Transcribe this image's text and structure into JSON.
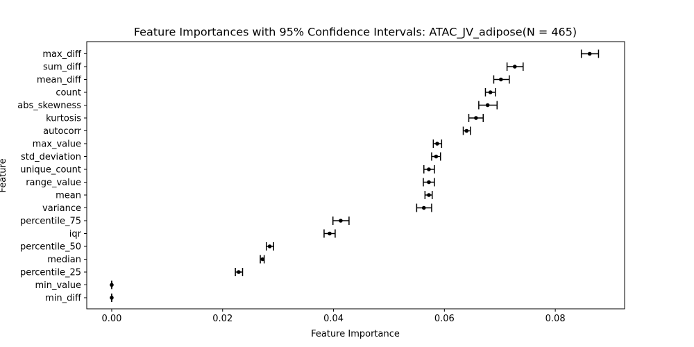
{
  "chart_data": {
    "type": "scatter",
    "title": "Feature Importances with 95% Confidence Intervals: ATAC_JV_adipose(N = 465)",
    "xlabel": "Feature Importance",
    "ylabel": "Feature",
    "xlim": [
      -0.0045,
      0.0925
    ],
    "x_ticks": [
      0.0,
      0.02,
      0.04,
      0.06,
      0.08
    ],
    "x_tick_labels": [
      "0.00",
      "0.02",
      "0.04",
      "0.06",
      "0.08"
    ],
    "grid": false,
    "legend": "none",
    "features": [
      {
        "name": "max_diff",
        "value": 0.0862,
        "lower": 0.0847,
        "upper": 0.0878
      },
      {
        "name": "sum_diff",
        "value": 0.0727,
        "lower": 0.0713,
        "upper": 0.0742
      },
      {
        "name": "mean_diff",
        "value": 0.0702,
        "lower": 0.0689,
        "upper": 0.0717
      },
      {
        "name": "count",
        "value": 0.0683,
        "lower": 0.0674,
        "upper": 0.0692
      },
      {
        "name": "abs_skewness",
        "value": 0.0678,
        "lower": 0.0662,
        "upper": 0.0695
      },
      {
        "name": "kurtosis",
        "value": 0.0657,
        "lower": 0.0644,
        "upper": 0.067
      },
      {
        "name": "autocorr",
        "value": 0.064,
        "lower": 0.0634,
        "upper": 0.0647
      },
      {
        "name": "max_value",
        "value": 0.0587,
        "lower": 0.058,
        "upper": 0.0595
      },
      {
        "name": "std_deviation",
        "value": 0.0585,
        "lower": 0.0577,
        "upper": 0.0593
      },
      {
        "name": "unique_count",
        "value": 0.0572,
        "lower": 0.0563,
        "upper": 0.0582
      },
      {
        "name": "range_value",
        "value": 0.0572,
        "lower": 0.0562,
        "upper": 0.0582
      },
      {
        "name": "mean",
        "value": 0.0572,
        "lower": 0.0565,
        "upper": 0.0578
      },
      {
        "name": "variance",
        "value": 0.0563,
        "lower": 0.055,
        "upper": 0.0577
      },
      {
        "name": "percentile_75",
        "value": 0.0413,
        "lower": 0.0399,
        "upper": 0.0428
      },
      {
        "name": "iqr",
        "value": 0.0393,
        "lower": 0.0383,
        "upper": 0.0403
      },
      {
        "name": "percentile_50",
        "value": 0.0285,
        "lower": 0.0279,
        "upper": 0.0292
      },
      {
        "name": "median",
        "value": 0.0272,
        "lower": 0.0268,
        "upper": 0.0275
      },
      {
        "name": "percentile_25",
        "value": 0.0229,
        "lower": 0.0223,
        "upper": 0.0236
      },
      {
        "name": "min_value",
        "value": 0.0,
        "lower": 0.0,
        "upper": 0.0
      },
      {
        "name": "min_diff",
        "value": 0.0,
        "lower": 0.0,
        "upper": 0.0
      }
    ]
  }
}
